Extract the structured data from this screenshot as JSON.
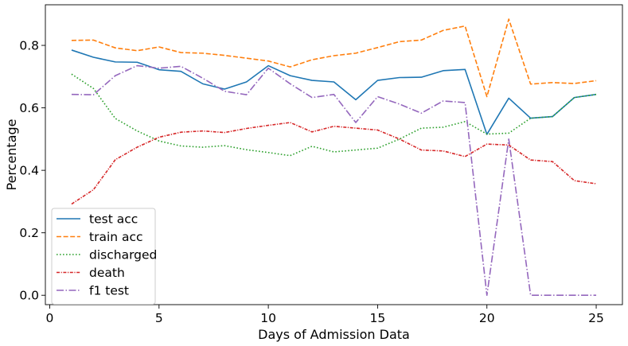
{
  "chart_data": {
    "type": "line",
    "title": "",
    "xlabel": "Days of Admission Data",
    "ylabel": "Percentage",
    "xlim": [
      -0.2,
      26.2
    ],
    "ylim": [
      -0.03,
      0.93
    ],
    "xticks": [
      0,
      5,
      10,
      15,
      20,
      25
    ],
    "yticks": [
      0.0,
      0.2,
      0.4,
      0.6,
      0.8
    ],
    "ytick_labels": [
      "0.0",
      "0.2",
      "0.4",
      "0.6",
      "0.8"
    ],
    "grid": false,
    "legend_position": "lower-left",
    "x": [
      1,
      2,
      3,
      4,
      5,
      6,
      7,
      8,
      9,
      10,
      11,
      12,
      13,
      14,
      15,
      16,
      17,
      18,
      19,
      20,
      21,
      22,
      23,
      24,
      25
    ],
    "series": [
      {
        "name": "test acc",
        "color": "#1f77b4",
        "dash": "solid",
        "values": [
          0.785,
          0.762,
          0.747,
          0.746,
          0.722,
          0.717,
          0.677,
          0.66,
          0.683,
          0.735,
          0.703,
          0.688,
          0.683,
          0.626,
          0.688,
          0.697,
          0.698,
          0.719,
          0.723,
          0.515,
          0.631,
          0.567,
          0.572,
          0.633,
          0.643
        ]
      },
      {
        "name": "train acc",
        "color": "#ff7f0e",
        "dash": "dashed",
        "values": [
          0.816,
          0.817,
          0.792,
          0.783,
          0.795,
          0.777,
          0.775,
          0.768,
          0.759,
          0.75,
          0.731,
          0.754,
          0.767,
          0.775,
          0.793,
          0.812,
          0.817,
          0.848,
          0.862,
          0.636,
          0.884,
          0.676,
          0.681,
          0.678,
          0.687
        ]
      },
      {
        "name": "discharged",
        "color": "#2ca02c",
        "dash": "dotted",
        "values": [
          0.708,
          0.662,
          0.566,
          0.526,
          0.494,
          0.478,
          0.474,
          0.479,
          0.466,
          0.457,
          0.447,
          0.477,
          0.459,
          0.465,
          0.471,
          0.5,
          0.535,
          0.538,
          0.556,
          0.516,
          0.519,
          0.567,
          0.572,
          0.633,
          0.643
        ]
      },
      {
        "name": "death",
        "color": "#d62728",
        "dash": "dashdot",
        "values": [
          0.292,
          0.338,
          0.434,
          0.474,
          0.506,
          0.522,
          0.526,
          0.521,
          0.534,
          0.544,
          0.553,
          0.523,
          0.541,
          0.535,
          0.529,
          0.5,
          0.465,
          0.462,
          0.444,
          0.484,
          0.481,
          0.433,
          0.428,
          0.367,
          0.357
        ]
      },
      {
        "name": "f1 test",
        "color": "#9467bd",
        "dash": "dashdot-long",
        "values": [
          0.643,
          0.642,
          0.703,
          0.735,
          0.727,
          0.733,
          0.695,
          0.653,
          0.642,
          0.727,
          0.677,
          0.633,
          0.643,
          0.553,
          0.636,
          0.612,
          0.583,
          0.622,
          0.617,
          0.0,
          0.5,
          0.0,
          0.0,
          0.0,
          0.0
        ]
      }
    ]
  }
}
